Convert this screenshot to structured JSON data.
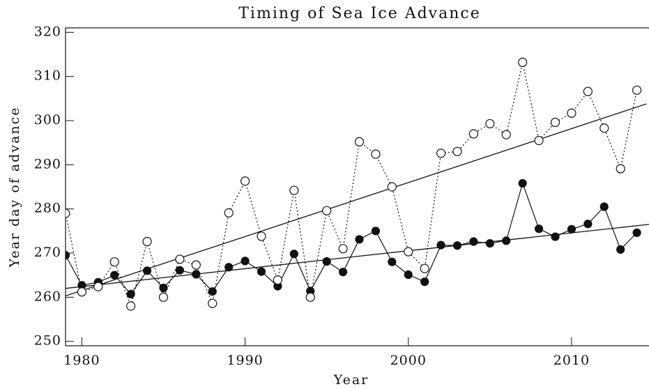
{
  "chart_data": {
    "type": "line",
    "title": "Timing of Sea Ice Advance",
    "xlabel": "Year",
    "ylabel": "Year day of advance",
    "x": [
      1979,
      1980,
      1981,
      1982,
      1983,
      1984,
      1985,
      1986,
      1987,
      1988,
      1989,
      1990,
      1991,
      1992,
      1993,
      1994,
      1995,
      1996,
      1997,
      1998,
      1999,
      2000,
      2001,
      2002,
      2003,
      2004,
      2005,
      2006,
      2007,
      2008,
      2009,
      2010,
      2011,
      2012,
      2013,
      2014
    ],
    "series": [
      {
        "color": "#111111",
        "marker": "filled",
        "dashed": false,
        "values": [
          269.5,
          262.7,
          263.4,
          265,
          260.7,
          266,
          262.1,
          266.1,
          265.2,
          261.3,
          266.8,
          268.2,
          265.8,
          262.5,
          269.8,
          261.4,
          268.1,
          265.7,
          273.1,
          275,
          268,
          265.1,
          263.5,
          271.8,
          271.7,
          272.6,
          272.2,
          272.8,
          285.8,
          275.5,
          273.7,
          275.4,
          276.6,
          280.5,
          270.8,
          274.6
        ],
        "trend": {
          "x": [
            1979,
            2015
          ],
          "values": [
            262.0,
            276.6
          ]
        }
      },
      {
        "color": "#111111",
        "marker": "open",
        "dashed": true,
        "values": [
          279,
          261.2,
          262.4,
          268,
          258,
          272.6,
          260,
          268.6,
          267.3,
          258.6,
          279.1,
          286.3,
          273.8,
          263.9,
          284.2,
          260,
          279.6,
          271,
          295.2,
          292.4,
          285,
          270.3,
          266.5,
          292.6,
          293,
          297,
          299.3,
          296.8,
          313.2,
          295.5,
          299.6,
          301.7,
          306.6,
          298.3,
          289.1,
          306.9
        ],
        "trend": {
          "x": [
            1979,
            2014.6
          ],
          "values": [
            260.3,
            303.8
          ]
        }
      }
    ],
    "xlim": [
      1979,
      2015
    ],
    "ylim": [
      249,
      321
    ],
    "xticks": [
      1980,
      1990,
      2000,
      2010
    ],
    "yticks": [
      250,
      260,
      270,
      280,
      290,
      300,
      310,
      320
    ]
  }
}
